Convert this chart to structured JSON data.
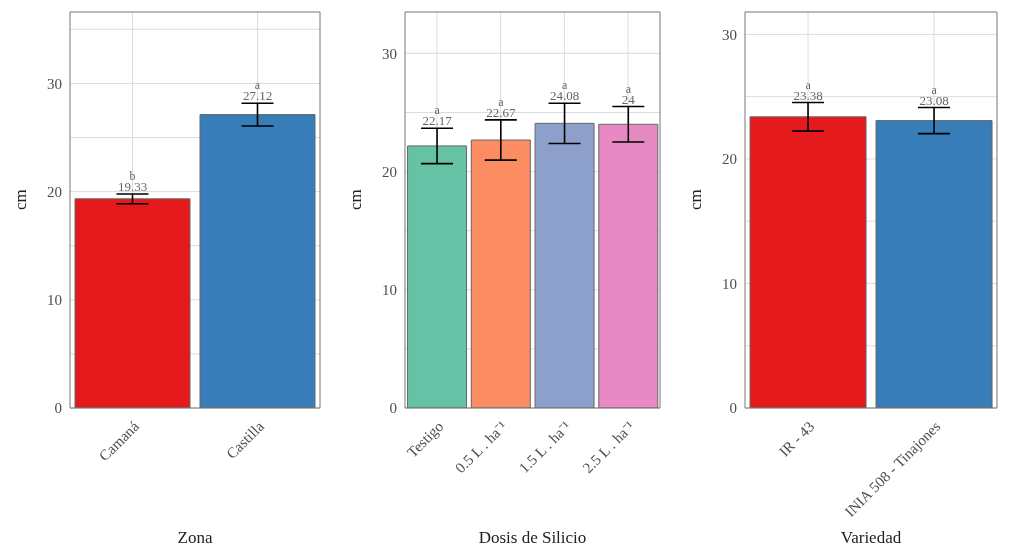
{
  "chart_data": [
    {
      "type": "bar",
      "xlabel": "Zona",
      "ylabel": "cm",
      "categories": [
        "Camaná",
        "Castilla"
      ],
      "values": [
        19.33,
        27.12
      ],
      "colors": [
        "#e41a1c",
        "#377eb8"
      ],
      "errors": [
        0.45,
        1.05
      ],
      "data_labels": true,
      "annotations": [
        {
          "text": "b",
          "x": "Camaná",
          "y": 19.33
        },
        {
          "text": "a",
          "x": "Castilla",
          "y": 27.12
        }
      ],
      "ylim": [
        0,
        36.6
      ],
      "yticks": [
        0,
        {
          "value": 5,
          "label": null
        },
        10,
        {
          "value": 15,
          "label": null
        },
        20,
        {
          "value": 25,
          "label": null
        },
        30,
        {
          "value": 35,
          "label": null
        }
      ],
      "grid": true
    },
    {
      "type": "bar",
      "xlabel": "Dosis de Silicio",
      "ylabel": "cm",
      "categories": [
        "Testigo",
        "0.5 L . ha⁻¹",
        "1.5 L . ha⁻¹",
        "2.5 L . ha⁻¹"
      ],
      "values": [
        22.17,
        22.67,
        24.08,
        24
      ],
      "colors": [
        "#66c2a5",
        "#fc8d62",
        "#8da0cb",
        "#e78ac3"
      ],
      "errors": [
        1.5,
        1.7,
        1.7,
        1.5
      ],
      "data_labels": true,
      "annotations": [
        {
          "text": "a",
          "x": "Testigo",
          "y": 22.17
        },
        {
          "text": "a",
          "x": "0.5 L . ha⁻¹",
          "y": 22.67
        },
        {
          "text": "a",
          "x": "1.5 L . ha⁻¹",
          "y": 24.08
        },
        {
          "text": "a",
          "x": "2.5 L . ha⁻¹",
          "y": 24
        }
      ],
      "ylim": [
        0,
        33.5
      ],
      "yticks": [
        0,
        {
          "value": 5,
          "label": null
        },
        10,
        {
          "value": 15,
          "label": null
        },
        20,
        {
          "value": 25,
          "label": null
        },
        30
      ],
      "grid": true
    },
    {
      "type": "bar",
      "xlabel": "Variedad",
      "ylabel": "cm",
      "categories": [
        "IR - 43",
        "INIA 508 - Tinajones"
      ],
      "values": [
        23.38,
        23.08
      ],
      "colors": [
        "#e41a1c",
        "#377eb8"
      ],
      "errors": [
        1.15,
        1.05
      ],
      "data_labels": true,
      "annotations": [
        {
          "text": "a",
          "x": "IR - 43",
          "y": 23.38
        },
        {
          "text": "a",
          "x": "INIA 508 - Tinajones",
          "y": 23.08
        }
      ],
      "ylim": [
        0,
        31.8
      ],
      "yticks": [
        0,
        {
          "value": 5,
          "label": null
        },
        10,
        {
          "value": 15,
          "label": null
        },
        20,
        {
          "value": 25,
          "label": null
        },
        30
      ],
      "grid": true
    }
  ]
}
